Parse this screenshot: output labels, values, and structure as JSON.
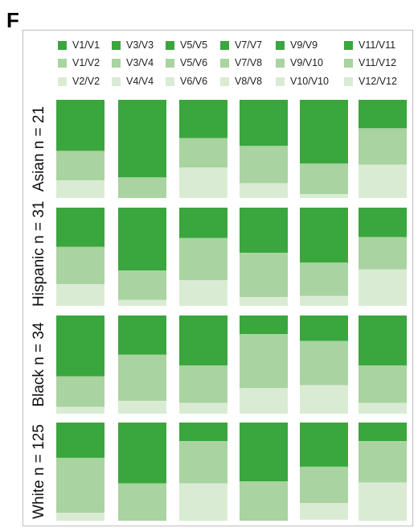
{
  "panel_letter": "F",
  "chart_data": {
    "type": "stacked-bar",
    "colors": {
      "homozygous": "#3aa63e",
      "heterozygous": "#a9d3a0",
      "other": "#d9ecd3"
    },
    "legend": [
      {
        "label": "V1/V1",
        "category": "homozygous"
      },
      {
        "label": "V3/V3",
        "category": "homozygous"
      },
      {
        "label": "V5/V5",
        "category": "homozygous"
      },
      {
        "label": "V7/V7",
        "category": "homozygous"
      },
      {
        "label": "V9/V9",
        "category": "homozygous"
      },
      {
        "label": "V11/V11",
        "category": "homozygous"
      },
      {
        "label": "V1/V2",
        "category": "heterozygous"
      },
      {
        "label": "V3/V4",
        "category": "heterozygous"
      },
      {
        "label": "V5/V6",
        "category": "heterozygous"
      },
      {
        "label": "V7/V8",
        "category": "heterozygous"
      },
      {
        "label": "V9/V10",
        "category": "heterozygous"
      },
      {
        "label": "V11/V12",
        "category": "heterozygous"
      },
      {
        "label": "V2/V2",
        "category": "other"
      },
      {
        "label": "V4/V4",
        "category": "other"
      },
      {
        "label": "V6/V6",
        "category": "other"
      },
      {
        "label": "V8/V8",
        "category": "other"
      },
      {
        "label": "V10/V10",
        "category": "other"
      },
      {
        "label": "V12/V12",
        "category": "other"
      }
    ],
    "groups": [
      {
        "label": "Asian n = 21",
        "bars": [
          [
            0.52,
            0.3,
            0.25
          ],
          [
            0.79,
            0.21,
            0.0
          ],
          [
            0.39,
            0.3,
            0.34
          ],
          [
            0.47,
            0.38,
            0.22
          ],
          [
            0.65,
            0.31,
            0.09
          ],
          [
            0.29,
            0.37,
            0.36
          ]
        ]
      },
      {
        "label": "Hispanic n = 31",
        "bars": [
          [
            0.4,
            0.38,
            0.25
          ],
          [
            0.64,
            0.3,
            0.1
          ],
          [
            0.31,
            0.43,
            0.32
          ],
          [
            0.46,
            0.45,
            0.14
          ],
          [
            0.56,
            0.34,
            0.14
          ],
          [
            0.3,
            0.33,
            0.39
          ]
        ]
      },
      {
        "label": "Black n = 34",
        "bars": [
          [
            0.62,
            0.31,
            0.1
          ],
          [
            0.4,
            0.47,
            0.18
          ],
          [
            0.51,
            0.38,
            0.16
          ],
          [
            0.19,
            0.55,
            0.3
          ],
          [
            0.26,
            0.45,
            0.31
          ],
          [
            0.51,
            0.38,
            0.15
          ]
        ]
      },
      {
        "label": "White n = 125",
        "bars": [
          [
            0.36,
            0.56,
            0.13
          ],
          [
            0.62,
            0.38,
            0.05
          ],
          [
            0.19,
            0.43,
            0.39
          ],
          [
            0.6,
            0.42,
            0.0
          ],
          [
            0.45,
            0.37,
            0.17
          ],
          [
            0.19,
            0.42,
            0.4
          ]
        ]
      }
    ]
  }
}
